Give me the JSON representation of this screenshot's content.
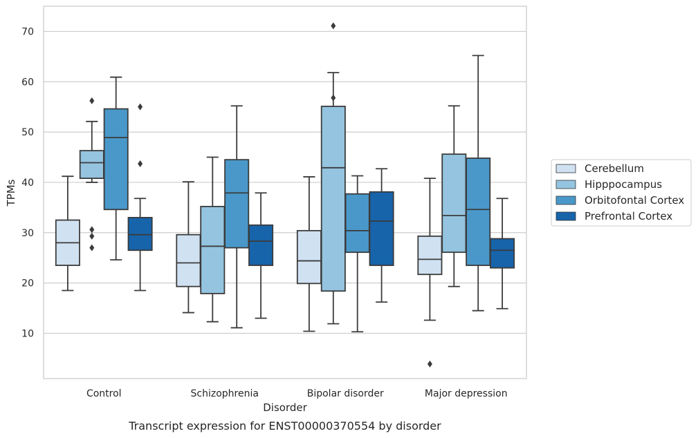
{
  "chart_data": {
    "type": "box",
    "xlabel": "Disorder",
    "ylabel": "TPMs",
    "caption": "Transcript expression for ENST00000370554 by disorder",
    "ylim": [
      1,
      75
    ],
    "yticks": [
      10,
      20,
      30,
      40,
      50,
      60,
      70
    ],
    "grid": true,
    "legend_position": "right",
    "categories": [
      "Control",
      "Schizophrenia",
      "Bipolar disorder",
      "Major depression"
    ],
    "series": [
      {
        "name": "Cerebellum",
        "color": "#d0e1f2",
        "boxes": [
          {
            "whisker_low": 18.5,
            "q1": 23.5,
            "median": 28.0,
            "q3": 32.5,
            "whisker_high": 41.2,
            "outliers": []
          },
          {
            "whisker_low": 14.1,
            "q1": 19.3,
            "median": 24.0,
            "q3": 29.6,
            "whisker_high": 40.1,
            "outliers": []
          },
          {
            "whisker_low": 10.4,
            "q1": 19.9,
            "median": 24.4,
            "q3": 30.4,
            "whisker_high": 41.1,
            "outliers": []
          },
          {
            "whisker_low": 12.6,
            "q1": 21.7,
            "median": 24.7,
            "q3": 29.3,
            "whisker_high": 40.8,
            "outliers": [
              3.9
            ]
          }
        ]
      },
      {
        "name": "Hipppocampus",
        "color": "#94c4df",
        "boxes": [
          {
            "whisker_low": 40.0,
            "q1": 40.8,
            "median": 43.9,
            "q3": 46.3,
            "whisker_high": 52.1,
            "outliers": [
              56.2,
              30.6,
              29.3,
              27.0
            ]
          },
          {
            "whisker_low": 12.3,
            "q1": 17.9,
            "median": 27.3,
            "q3": 35.2,
            "whisker_high": 45.0,
            "outliers": []
          },
          {
            "whisker_low": 11.9,
            "q1": 18.4,
            "median": 42.9,
            "q3": 55.1,
            "whisker_high": 61.8,
            "outliers": [
              71.1,
              56.8
            ]
          },
          {
            "whisker_low": 19.3,
            "q1": 26.1,
            "median": 33.4,
            "q3": 45.6,
            "whisker_high": 55.2,
            "outliers": []
          }
        ]
      },
      {
        "name": "Orbitofontal Cortex",
        "color": "#4a98c9",
        "boxes": [
          {
            "whisker_low": 24.6,
            "q1": 34.6,
            "median": 48.9,
            "q3": 54.6,
            "whisker_high": 60.9,
            "outliers": []
          },
          {
            "whisker_low": 11.1,
            "q1": 27.0,
            "median": 37.9,
            "q3": 44.5,
            "whisker_high": 55.2,
            "outliers": []
          },
          {
            "whisker_low": 10.3,
            "q1": 26.1,
            "median": 30.4,
            "q3": 37.7,
            "whisker_high": 41.3,
            "outliers": []
          },
          {
            "whisker_low": 14.5,
            "q1": 23.5,
            "median": 34.6,
            "q3": 44.8,
            "whisker_high": 65.2,
            "outliers": []
          }
        ]
      },
      {
        "name": "Prefrontal Cortex",
        "color": "#1764ab",
        "boxes": [
          {
            "whisker_low": 18.5,
            "q1": 26.5,
            "median": 29.6,
            "q3": 33.0,
            "whisker_high": 36.8,
            "outliers": [
              55.0,
              43.7
            ]
          },
          {
            "whisker_low": 13.0,
            "q1": 23.5,
            "median": 28.3,
            "q3": 31.5,
            "whisker_high": 37.9,
            "outliers": []
          },
          {
            "whisker_low": 16.2,
            "q1": 23.5,
            "median": 32.3,
            "q3": 38.1,
            "whisker_high": 42.7,
            "outliers": []
          },
          {
            "whisker_low": 14.9,
            "q1": 23.0,
            "median": 26.5,
            "q3": 28.8,
            "whisker_high": 36.8,
            "outliers": []
          }
        ]
      }
    ]
  }
}
